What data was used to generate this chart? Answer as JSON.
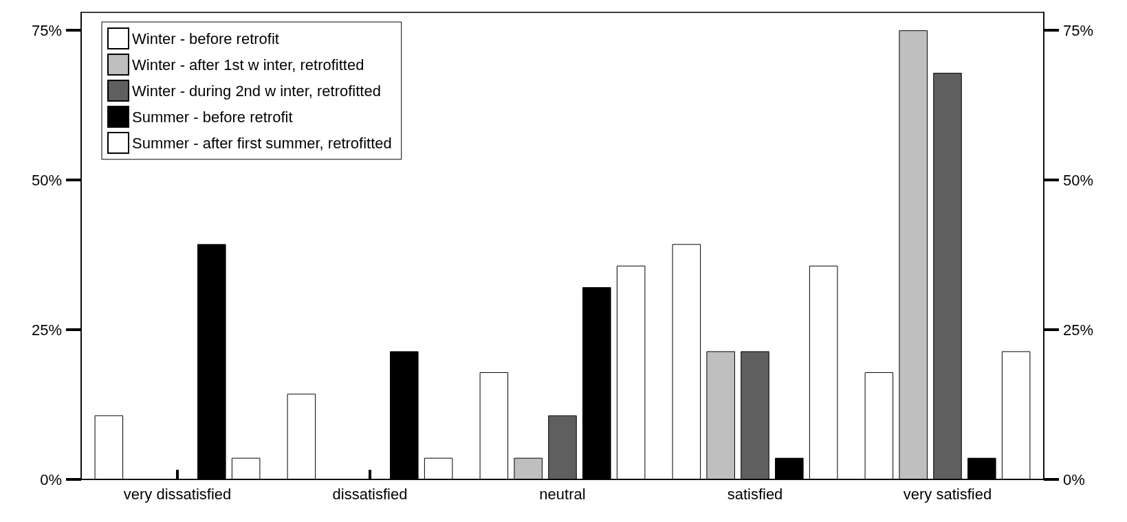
{
  "chart_data": {
    "type": "bar",
    "categories": [
      "very dissatisfied",
      "dissatisfied",
      "neutral",
      "satisfied",
      "very satisfied"
    ],
    "series": [
      {
        "name": "Winter - before retrofit",
        "color": "#ffffff",
        "values": [
          10.7,
          14.3,
          17.9,
          39.3,
          17.9
        ]
      },
      {
        "name": "Winter - after 1st w inter, retrofitted",
        "color": "#bfbfbf",
        "values": [
          0,
          0,
          3.6,
          21.4,
          75
        ]
      },
      {
        "name": "Winter - during 2nd w inter, retrofitted",
        "color": "#5f5f5f",
        "values": [
          0,
          0,
          10.7,
          21.4,
          67.9
        ]
      },
      {
        "name": "Summer - before retrofit",
        "color": "#000000",
        "values": [
          39.3,
          21.4,
          32.1,
          3.6,
          3.6
        ]
      },
      {
        "name": "Summer - after first summer, retrofitted",
        "color": "#ffffff",
        "values": [
          3.6,
          3.6,
          35.7,
          35.7,
          21.4
        ]
      }
    ],
    "ylim": [
      0,
      78
    ],
    "yticks": [
      {
        "value": 0,
        "label": "0%"
      },
      {
        "value": 25,
        "label": "25%"
      },
      {
        "value": 50,
        "label": "50%"
      },
      {
        "value": 75,
        "label": "75%"
      }
    ],
    "y2lim": [
      0,
      78
    ],
    "y2ticks": [
      {
        "value": 0,
        "label": "0%"
      },
      {
        "value": 25,
        "label": "25%"
      },
      {
        "value": 50,
        "label": "50%"
      },
      {
        "value": 75,
        "label": "75%"
      }
    ],
    "grid": false,
    "legend": "top left"
  }
}
